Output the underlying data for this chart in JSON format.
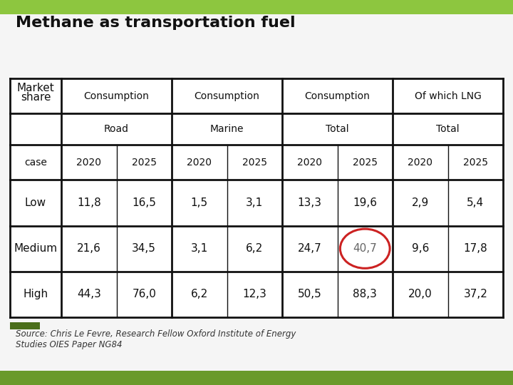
{
  "title": "Methane as transportation fuel",
  "title_fontsize": 16,
  "background_color": "#f5f5f5",
  "year_labels": [
    "2020",
    "2025",
    "2020",
    "2025",
    "2020",
    "2025",
    "2020",
    "2025"
  ],
  "data_rows": [
    [
      "Low",
      "11,8",
      "16,5",
      "1,5",
      "3,1",
      "13,3",
      "19,6",
      "2,9",
      "5,4"
    ],
    [
      "Medium",
      "21,6",
      "34,5",
      "3,1",
      "6,2",
      "24,7",
      "40,7",
      "9,6",
      "17,8"
    ],
    [
      "High",
      "44,3",
      "76,0",
      "6,2",
      "12,3",
      "50,5",
      "88,3",
      "20,0",
      "37,2"
    ]
  ],
  "circled_cell_row": 1,
  "circled_cell_col": 6,
  "circle_color": "#cc2222",
  "source_text": "Source: Chris Le Fevre, Research Fellow Oxford Institute of Energy\nStudies OIES Paper NG84",
  "footer_bar_color": "#6a9a2a",
  "footer_bar2_color": "#8dc63f",
  "border_color": "#111111",
  "text_color": "#111111"
}
